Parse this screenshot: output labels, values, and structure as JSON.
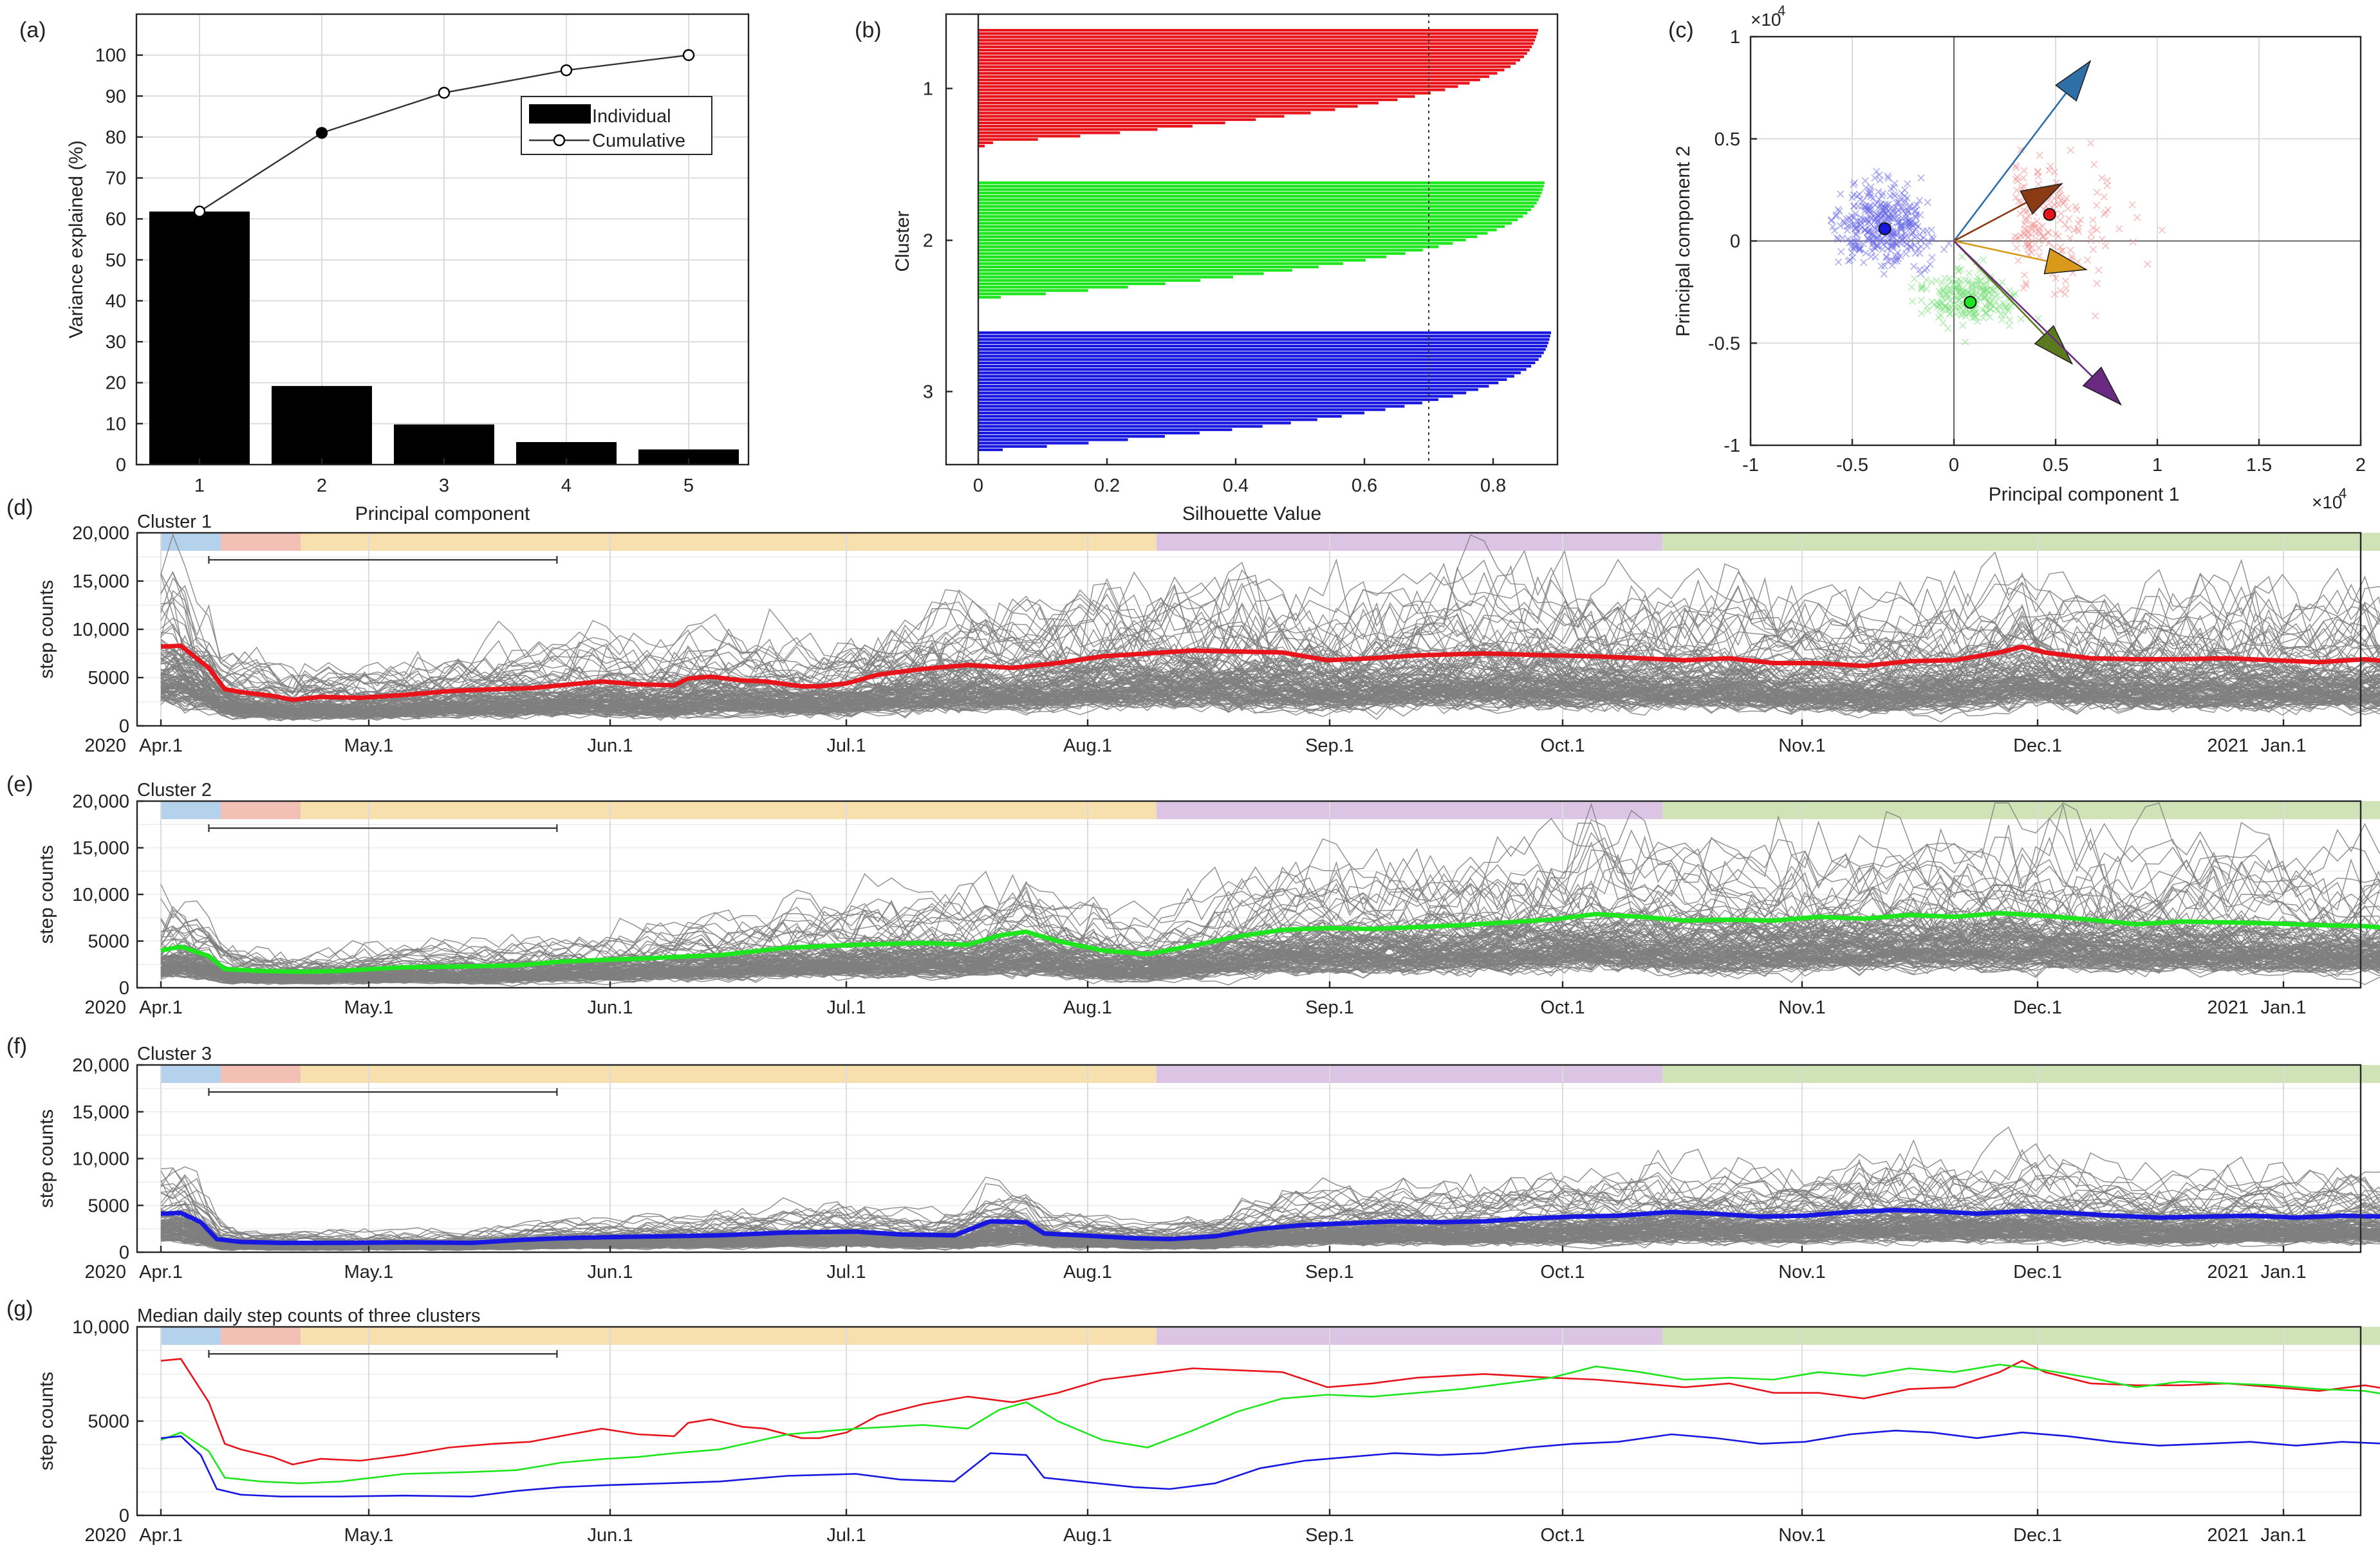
{
  "panel_labels": [
    "(a)",
    "(b)",
    "(c)",
    "(d)",
    "(e)",
    "(f)",
    "(g)"
  ],
  "colors": {
    "red": "#e8141b",
    "green": "#1ee61e",
    "blue": "#1717e0",
    "gray": "#7f7f7f",
    "phase_blue": "#b4d2ec",
    "phase_pink": "#f2c0b4",
    "phase_yellow": "#f8dfae",
    "phase_purple": "#dbc4e4",
    "phase_green": "#d0e3b6"
  },
  "chart_data": [
    {
      "id": "a",
      "type": "bar",
      "xlabel": "Principal component",
      "ylabel": "Variance explained (%)",
      "categories": [
        "1",
        "2",
        "3",
        "4",
        "5"
      ],
      "ylim": [
        0,
        110
      ],
      "yticks": [
        "0",
        "10",
        "20",
        "30",
        "40",
        "50",
        "60",
        "70",
        "80",
        "90",
        "100"
      ],
      "grid": true,
      "series": [
        {
          "name": "Individual",
          "kind": "bar",
          "values": [
            61.8,
            19.2,
            9.8,
            5.5,
            3.7
          ]
        },
        {
          "name": "Cumulative",
          "kind": "line",
          "values": [
            61.8,
            81.0,
            90.8,
            96.3,
            100.0
          ]
        }
      ],
      "legend": [
        "Individual",
        "Cumulative"
      ],
      "legend_position": "top-right"
    },
    {
      "id": "b",
      "type": "bar",
      "orientation": "horizontal",
      "xlabel": "Silhouette Value",
      "ylabel": "Cluster",
      "xlim": [
        -0.05,
        0.9
      ],
      "xticks": [
        "0",
        "0.2",
        "0.4",
        "0.6",
        "0.8"
      ],
      "clusters": [
        {
          "name": "1",
          "max": 0.87,
          "min": 0.0,
          "spread": 0.34
        },
        {
          "name": "2",
          "max": 0.88,
          "min": 0.08,
          "spread": 0.3
        },
        {
          "name": "3",
          "max": 0.89,
          "min": 0.08,
          "spread": 0.28
        }
      ],
      "mean_line": 0.7
    },
    {
      "id": "c",
      "type": "scatter",
      "xlabel": "Principal component 1",
      "ylabel": "Principal component 2",
      "x_exponent": "×10",
      "y_exponent": "×10",
      "exponent_power": "4",
      "xlim": [
        -1,
        2
      ],
      "ylim": [
        -1,
        1
      ],
      "xticks": [
        "-1",
        "-0.5",
        "0",
        "0.5",
        "1",
        "1.5",
        "2"
      ],
      "yticks": [
        "-1",
        "-0.5",
        "0",
        "0.5",
        "1"
      ],
      "centroids": [
        {
          "cluster": "1",
          "x": 0.47,
          "y": 0.13
        },
        {
          "cluster": "2",
          "x": 0.08,
          "y": -0.3
        },
        {
          "cluster": "3",
          "x": -0.34,
          "y": 0.06
        }
      ],
      "vectors": [
        {
          "x": 0.67,
          "y": 0.88,
          "color": "#2f6fa8"
        },
        {
          "x": 0.53,
          "y": 0.28,
          "color": "#8a3b14"
        },
        {
          "x": 0.65,
          "y": -0.14,
          "color": "#d99a1c"
        },
        {
          "x": 0.58,
          "y": -0.6,
          "color": "#5b7a1e"
        },
        {
          "x": 0.82,
          "y": -0.8,
          "color": "#6a2a82"
        }
      ]
    },
    {
      "id": "d",
      "type": "line",
      "title": "Cluster 1",
      "ylabel": "step counts",
      "ylim": [
        0,
        20000
      ],
      "yticks": [
        "0",
        "5000",
        "10,000",
        "15,000",
        "20,000"
      ],
      "x_start_label": "2020",
      "x_year_label": "2021",
      "month_labels": [
        "Apr.1",
        "May.1",
        "Jun.1",
        "Jul.1",
        "Aug.1",
        "Sep.1",
        "Oct.1",
        "Nov.1",
        "Dec.1",
        "Jan.1"
      ],
      "median_color": "#e8141b",
      "median": [
        [
          0,
          8200
        ],
        [
          5,
          8300
        ],
        [
          12,
          6000
        ],
        [
          16,
          3800
        ],
        [
          20,
          3500
        ],
        [
          28,
          3100
        ],
        [
          33,
          2700
        ],
        [
          40,
          3000
        ],
        [
          50,
          2900
        ],
        [
          60,
          3200
        ],
        [
          70,
          3600
        ],
        [
          80,
          3800
        ],
        [
          88,
          3900
        ],
        [
          97,
          4300
        ],
        [
          104,
          4600
        ],
        [
          112,
          4300
        ],
        [
          120,
          4200
        ],
        [
          123,
          4900
        ],
        [
          128,
          5100
        ],
        [
          135,
          4700
        ],
        [
          140,
          4600
        ],
        [
          148,
          4100
        ],
        [
          152,
          4100
        ],
        [
          158,
          4400
        ],
        [
          165,
          5300
        ],
        [
          175,
          5900
        ],
        [
          185,
          6300
        ],
        [
          195,
          6000
        ],
        [
          205,
          6500
        ],
        [
          215,
          7200
        ],
        [
          225,
          7500
        ],
        [
          235,
          7800
        ],
        [
          245,
          7700
        ],
        [
          255,
          7600
        ],
        [
          265,
          6800
        ],
        [
          275,
          7000
        ],
        [
          285,
          7300
        ],
        [
          300,
          7500
        ],
        [
          315,
          7300
        ],
        [
          325,
          7200
        ],
        [
          335,
          7000
        ],
        [
          345,
          6800
        ],
        [
          355,
          7000
        ],
        [
          365,
          6500
        ],
        [
          375,
          6500
        ],
        [
          385,
          6200
        ],
        [
          395,
          6700
        ],
        [
          405,
          6800
        ],
        [
          415,
          7600
        ],
        [
          420,
          8200
        ],
        [
          425,
          7600
        ],
        [
          435,
          7000
        ],
        [
          445,
          6900
        ],
        [
          455,
          6900
        ],
        [
          465,
          7000
        ],
        [
          475,
          6800
        ],
        [
          485,
          6600
        ],
        [
          495,
          6900
        ],
        [
          500,
          6700
        ],
        [
          510,
          6000
        ],
        [
          520,
          5900
        ],
        [
          530,
          5800
        ]
      ]
    },
    {
      "id": "e",
      "type": "line",
      "title": "Cluster 2",
      "ylabel": "step counts",
      "ylim": [
        0,
        20000
      ],
      "yticks": [
        "0",
        "5000",
        "10,000",
        "15,000",
        "20,000"
      ],
      "x_start_label": "2020",
      "x_year_label": "2021",
      "month_labels": [
        "Apr.1",
        "May.1",
        "Jun.1",
        "Jul.1",
        "Aug.1",
        "Sep.1",
        "Oct.1",
        "Nov.1",
        "Dec.1",
        "Jan.1"
      ],
      "median_color": "#1ee61e",
      "median": [
        [
          0,
          4000
        ],
        [
          5,
          4400
        ],
        [
          12,
          3400
        ],
        [
          16,
          2000
        ],
        [
          25,
          1800
        ],
        [
          35,
          1700
        ],
        [
          45,
          1800
        ],
        [
          60,
          2200
        ],
        [
          75,
          2300
        ],
        [
          85,
          2400
        ],
        [
          95,
          2800
        ],
        [
          105,
          3000
        ],
        [
          112,
          3100
        ],
        [
          120,
          3300
        ],
        [
          130,
          3500
        ],
        [
          145,
          4300
        ],
        [
          160,
          4600
        ],
        [
          175,
          4800
        ],
        [
          185,
          4600
        ],
        [
          192,
          5600
        ],
        [
          198,
          6000
        ],
        [
          205,
          5000
        ],
        [
          215,
          4000
        ],
        [
          225,
          3600
        ],
        [
          235,
          4500
        ],
        [
          245,
          5500
        ],
        [
          255,
          6200
        ],
        [
          265,
          6400
        ],
        [
          275,
          6300
        ],
        [
          285,
          6500
        ],
        [
          295,
          6700
        ],
        [
          305,
          7000
        ],
        [
          315,
          7300
        ],
        [
          325,
          7900
        ],
        [
          335,
          7600
        ],
        [
          345,
          7200
        ],
        [
          355,
          7300
        ],
        [
          365,
          7200
        ],
        [
          375,
          7600
        ],
        [
          385,
          7400
        ],
        [
          395,
          7800
        ],
        [
          405,
          7600
        ],
        [
          415,
          8000
        ],
        [
          425,
          7700
        ],
        [
          435,
          7300
        ],
        [
          445,
          6800
        ],
        [
          455,
          7100
        ],
        [
          465,
          7000
        ],
        [
          475,
          6900
        ],
        [
          485,
          6700
        ],
        [
          495,
          6600
        ],
        [
          505,
          6200
        ],
        [
          515,
          5800
        ],
        [
          530,
          5700
        ]
      ]
    },
    {
      "id": "f",
      "type": "line",
      "title": "Cluster 3",
      "ylabel": "step counts",
      "ylim": [
        0,
        20000
      ],
      "yticks": [
        "0",
        "5000",
        "10,000",
        "15,000",
        "20,000"
      ],
      "x_start_label": "2020",
      "x_year_label": "2021",
      "month_labels": [
        "Apr.1",
        "May.1",
        "Jun.1",
        "Jul.1",
        "Aug.1",
        "Sep.1",
        "Oct.1",
        "Nov.1",
        "Dec.1",
        "Jan.1"
      ],
      "median_color": "#1717e0",
      "median": [
        [
          0,
          4100
        ],
        [
          5,
          4200
        ],
        [
          10,
          3200
        ],
        [
          14,
          1400
        ],
        [
          20,
          1100
        ],
        [
          30,
          1000
        ],
        [
          45,
          1000
        ],
        [
          60,
          1050
        ],
        [
          75,
          1000
        ],
        [
          85,
          1300
        ],
        [
          95,
          1500
        ],
        [
          105,
          1600
        ],
        [
          118,
          1700
        ],
        [
          130,
          1800
        ],
        [
          145,
          2100
        ],
        [
          160,
          2200
        ],
        [
          170,
          1900
        ],
        [
          182,
          1800
        ],
        [
          190,
          3300
        ],
        [
          198,
          3200
        ],
        [
          202,
          2000
        ],
        [
          210,
          1800
        ],
        [
          222,
          1500
        ],
        [
          230,
          1400
        ],
        [
          240,
          1700
        ],
        [
          250,
          2500
        ],
        [
          260,
          2900
        ],
        [
          270,
          3100
        ],
        [
          280,
          3300
        ],
        [
          290,
          3200
        ],
        [
          300,
          3300
        ],
        [
          310,
          3600
        ],
        [
          320,
          3800
        ],
        [
          330,
          3900
        ],
        [
          342,
          4300
        ],
        [
          352,
          4100
        ],
        [
          362,
          3800
        ],
        [
          372,
          3900
        ],
        [
          382,
          4300
        ],
        [
          392,
          4500
        ],
        [
          400,
          4400
        ],
        [
          410,
          4100
        ],
        [
          420,
          4400
        ],
        [
          430,
          4200
        ],
        [
          440,
          3900
        ],
        [
          450,
          3700
        ],
        [
          460,
          3800
        ],
        [
          470,
          3900
        ],
        [
          480,
          3700
        ],
        [
          490,
          3900
        ],
        [
          500,
          3800
        ],
        [
          508,
          2700
        ],
        [
          515,
          3000
        ],
        [
          530,
          2900
        ]
      ]
    },
    {
      "id": "g",
      "type": "line",
      "title": "Median daily step counts of three clusters",
      "ylabel": "step counts",
      "ylim": [
        0,
        10000
      ],
      "yticks": [
        "0",
        "5000",
        "10,000"
      ],
      "x_start_label": "2020",
      "x_year_label": "2021",
      "month_labels": [
        "Apr.1",
        "May.1",
        "Jun.1",
        "Jul.1",
        "Aug.1",
        "Sep.1",
        "Oct.1",
        "Nov.1",
        "Dec.1",
        "Jan.1"
      ],
      "series_ref": [
        "d",
        "e",
        "f"
      ]
    }
  ],
  "phase_bands": [
    {
      "start": 0,
      "end": 15,
      "color": "#b4d2ec"
    },
    {
      "start": 15,
      "end": 35,
      "color": "#f2c0b4"
    },
    {
      "start": 35,
      "end": 227,
      "color": "#f8dfae"
    },
    {
      "start": 227,
      "end": 340,
      "color": "#dbc4e4"
    },
    {
      "start": 340,
      "end": 531,
      "color": "#d0e3b6"
    }
  ],
  "emergency_bracket": {
    "start": 12,
    "end": 94
  }
}
